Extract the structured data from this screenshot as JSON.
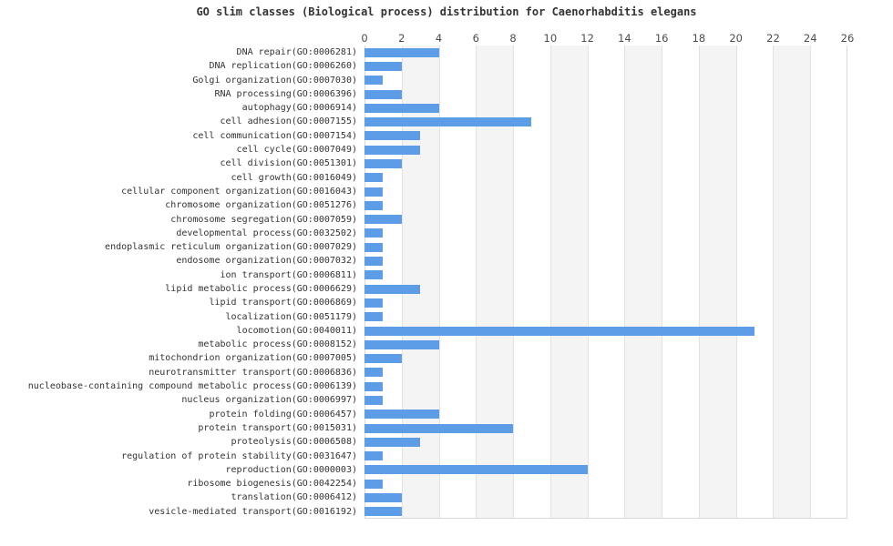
{
  "chart_data": {
    "type": "bar",
    "orientation": "horizontal",
    "title": "GO slim classes (Biological process) distribution for Caenorhabditis elegans",
    "xlabel": "",
    "ylabel": "",
    "xlim": [
      0,
      26
    ],
    "xticks": [
      0,
      2,
      4,
      6,
      8,
      10,
      12,
      14,
      16,
      18,
      20,
      22,
      24,
      26
    ],
    "grid": "alternating-vertical-stripes",
    "legend": "none",
    "categories": [
      "DNA repair(GO:0006281)",
      "DNA replication(GO:0006260)",
      "Golgi organization(GO:0007030)",
      "RNA processing(GO:0006396)",
      "autophagy(GO:0006914)",
      "cell adhesion(GO:0007155)",
      "cell communication(GO:0007154)",
      "cell cycle(GO:0007049)",
      "cell division(GO:0051301)",
      "cell growth(GO:0016049)",
      "cellular component organization(GO:0016043)",
      "chromosome organization(GO:0051276)",
      "chromosome segregation(GO:0007059)",
      "developmental process(GO:0032502)",
      "endoplasmic reticulum organization(GO:0007029)",
      "endosome organization(GO:0007032)",
      "ion transport(GO:0006811)",
      "lipid metabolic process(GO:0006629)",
      "lipid transport(GO:0006869)",
      "localization(GO:0051179)",
      "locomotion(GO:0040011)",
      "metabolic process(GO:0008152)",
      "mitochondrion organization(GO:0007005)",
      "neurotransmitter transport(GO:0006836)",
      "nucleobase-containing compound metabolic process(GO:0006139)",
      "nucleus organization(GO:0006997)",
      "protein folding(GO:0006457)",
      "protein transport(GO:0015031)",
      "proteolysis(GO:0006508)",
      "regulation of protein stability(GO:0031647)",
      "reproduction(GO:0000003)",
      "ribosome biogenesis(GO:0042254)",
      "translation(GO:0006412)",
      "vesicle-mediated transport(GO:0016192)"
    ],
    "values": [
      4,
      2,
      1,
      2,
      4,
      9,
      3,
      3,
      2,
      1,
      1,
      1,
      2,
      1,
      1,
      1,
      1,
      3,
      1,
      1,
      21,
      4,
      2,
      1,
      1,
      1,
      4,
      8,
      3,
      1,
      12,
      1,
      2,
      2
    ],
    "colors": {
      "bar": "#5d9de8",
      "stripe": "#f4f4f4",
      "gridline": "#e2e2e2",
      "axis_edge": "#d9d9d9",
      "title_text": "#333333",
      "tick_text": "#4d4d4d",
      "label_text": "#333333",
      "background": "#ffffff"
    }
  }
}
